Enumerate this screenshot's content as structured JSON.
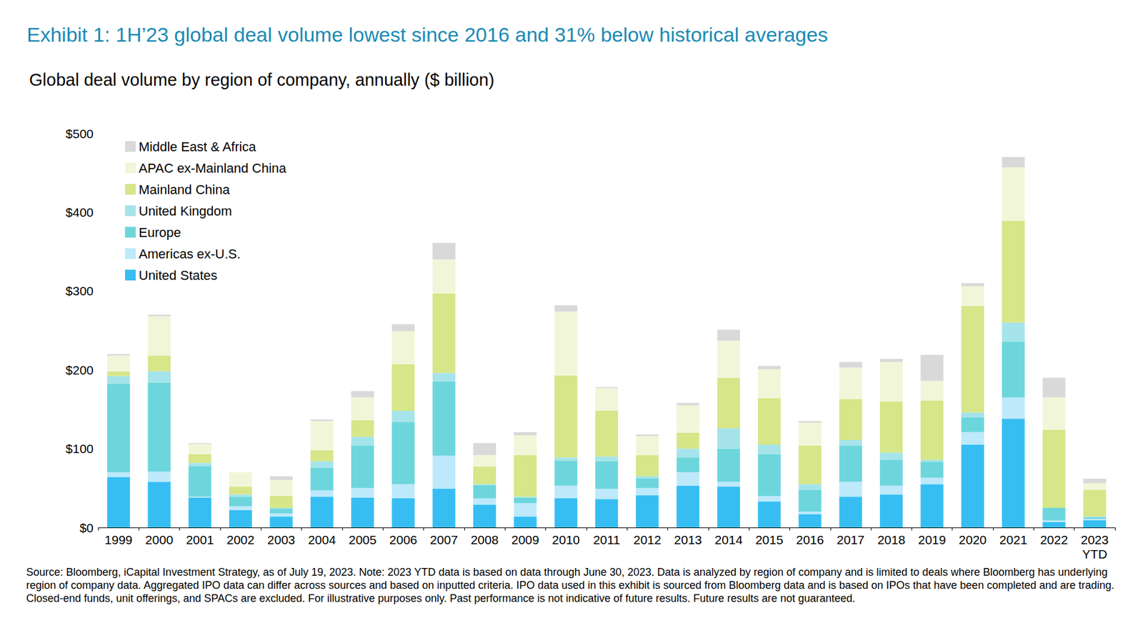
{
  "chart_data": {
    "type": "bar",
    "title": "Exhibit 1: 1H’23 global deal volume lowest since 2016 and 31% below historical averages",
    "subtitle": "Global deal volume by region of company, annually ($ billion)",
    "annotations": [
      "Source: Bloomberg, iCapital Investment Strategy, as of July 19, 2023. Note: 2023 YTD data is based on data through June 30, 2023. Data is analyzed by region of company and is limited to deals where Bloomberg has underlying region of company data. Aggregated IPO data can differ across sources and based on inputted criteria. IPO data used in this exhibit is sourced from Bloomberg data and is based on IPOs that have been completed and are trading. Closed-end funds, unit offerings, and SPACs are excluded. For illustrative purposes only. Past performance is not indicative of future results. Future results are not guaranteed."
    ],
    "categories": [
      "1999",
      "2000",
      "2001",
      "2002",
      "2003",
      "2004",
      "2005",
      "2006",
      "2007",
      "2008",
      "2009",
      "2010",
      "2011",
      "2012",
      "2013",
      "2014",
      "2015",
      "2016",
      "2017",
      "2018",
      "2019",
      "2020",
      "2021",
      "2022",
      "2023 YTD"
    ],
    "stacked": true,
    "grid": false,
    "legend": "top-left",
    "ylim": [
      0,
      500
    ],
    "yticks": [
      {
        "value": 0,
        "label": "$0"
      },
      {
        "value": 100,
        "label": "$100"
      },
      {
        "value": 200,
        "label": "$200"
      },
      {
        "value": 300,
        "label": "$300"
      },
      {
        "value": 400,
        "label": "$400"
      },
      {
        "value": 500,
        "label": "$500"
      }
    ],
    "series": [
      {
        "name": "United States",
        "color": "#36bef3",
        "values": [
          64,
          58,
          38,
          22,
          14,
          39,
          38,
          37,
          49,
          29,
          14,
          37,
          36,
          41,
          53,
          52,
          33,
          17,
          39,
          42,
          55,
          105,
          138,
          7,
          9
        ]
      },
      {
        "name": "Americas ex-U.S.",
        "color": "#bde9fb",
        "values": [
          6,
          13,
          1,
          5,
          4,
          8,
          12,
          18,
          42,
          8,
          17,
          16,
          13,
          9,
          17,
          6,
          7,
          3,
          19,
          11,
          8,
          16,
          27,
          2,
          2
        ]
      },
      {
        "name": "Europe",
        "color": "#6dd6dc",
        "values": [
          112,
          113,
          39,
          12,
          6,
          29,
          54,
          79,
          94,
          17,
          7,
          32,
          35,
          12,
          19,
          42,
          53,
          28,
          46,
          33,
          20,
          19,
          71,
          16,
          2
        ]
      },
      {
        "name": "United Kingdom",
        "color": "#a5e4ea",
        "values": [
          10,
          14,
          4,
          3,
          1,
          8,
          11,
          14,
          11,
          1,
          1,
          4,
          6,
          3,
          11,
          26,
          12,
          7,
          7,
          9,
          3,
          6,
          24,
          0,
          1
        ]
      },
      {
        "name": "Mainland China",
        "color": "#d6e689",
        "values": [
          6,
          20,
          11,
          10,
          15,
          14,
          21,
          59,
          101,
          22,
          53,
          104,
          58,
          27,
          20,
          64,
          59,
          49,
          52,
          65,
          75,
          135,
          129,
          99,
          34
        ]
      },
      {
        "name": "APAC ex-Mainland China",
        "color": "#f2f6d9",
        "values": [
          20,
          50,
          13,
          18,
          20,
          37,
          29,
          42,
          43,
          15,
          25,
          81,
          29,
          24,
          35,
          47,
          37,
          29,
          40,
          50,
          25,
          25,
          68,
          41,
          8
        ]
      },
      {
        "name": "Middle East & Africa",
        "color": "#d9d9d9",
        "values": [
          2,
          2,
          1,
          0,
          5,
          2,
          8,
          9,
          21,
          15,
          4,
          8,
          1,
          2,
          3,
          14,
          4,
          2,
          7,
          4,
          33,
          4,
          13,
          25,
          6
        ]
      }
    ]
  }
}
